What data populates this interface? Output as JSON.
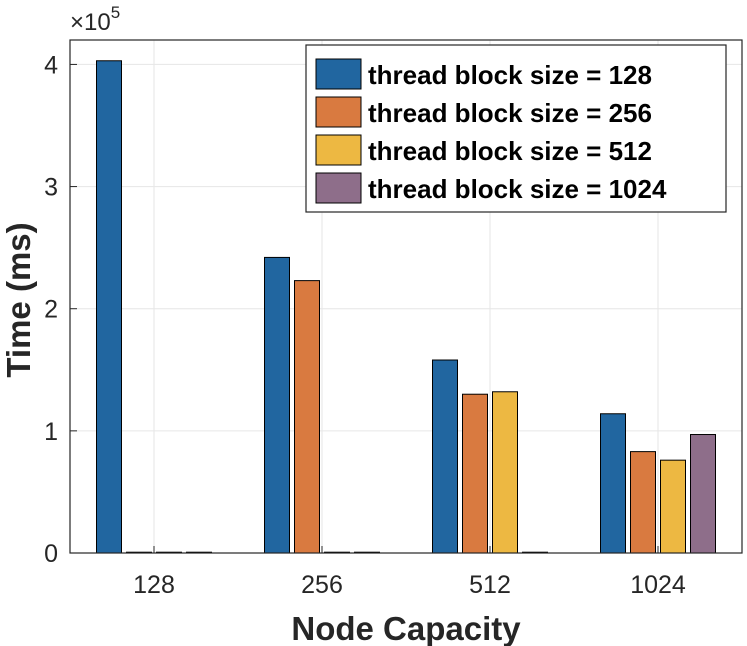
{
  "chart_data": {
    "type": "bar",
    "title": "",
    "xlabel": "Node Capacity",
    "ylabel": "Time (ms)",
    "categories": [
      "128",
      "256",
      "512",
      "1024"
    ],
    "ylim": [
      0,
      420000
    ],
    "yticks": [
      0,
      100000,
      200000,
      300000,
      400000
    ],
    "ytick_labels": [
      "0",
      "1",
      "2",
      "3",
      "4"
    ],
    "y_exponent_base": "×10",
    "y_exponent_power": "5",
    "grid": true,
    "legend_position": "top-right",
    "series": [
      {
        "name": "thread block size = 128",
        "color": "#2166A0",
        "values": [
          403000,
          242000,
          158000,
          114000
        ]
      },
      {
        "name": "thread block size = 256",
        "color": "#D97A40",
        "values": [
          0,
          223000,
          130000,
          83000
        ]
      },
      {
        "name": "thread block size = 512",
        "color": "#EDB842",
        "values": [
          0,
          0,
          132000,
          76000
        ]
      },
      {
        "name": "thread block size = 1024",
        "color": "#8E6E8A",
        "values": [
          0,
          0,
          0,
          97000
        ]
      }
    ]
  }
}
